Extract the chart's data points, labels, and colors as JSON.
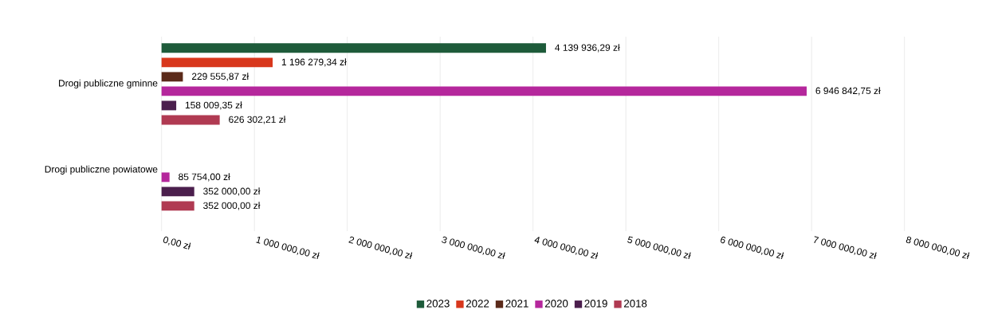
{
  "chart_data": {
    "type": "bar",
    "orientation": "horizontal",
    "categories": [
      "Drogi publiczne gminne",
      "Drogi publiczne powiatowe"
    ],
    "series": [
      {
        "name": "2023",
        "color": "#1e5b3a",
        "values": [
          4139936.29,
          null
        ],
        "value_labels": [
          "4 139 936,29 zł",
          null
        ]
      },
      {
        "name": "2022",
        "color": "#d8371c",
        "values": [
          1196279.34,
          null
        ],
        "value_labels": [
          "1 196 279,34 zł",
          null
        ]
      },
      {
        "name": "2021",
        "color": "#5b2a1a",
        "values": [
          229555.87,
          null
        ],
        "value_labels": [
          "229 555,87 zł",
          null
        ]
      },
      {
        "name": "2020",
        "color": "#b5279c",
        "values": [
          6946842.75,
          85754.0
        ],
        "value_labels": [
          "6 946 842,75 zł",
          "85 754,00 zł"
        ]
      },
      {
        "name": "2019",
        "color": "#4b1f4d",
        "values": [
          158009.35,
          352000.0
        ],
        "value_labels": [
          "158 009,35 zł",
          "352 000,00 zł"
        ]
      },
      {
        "name": "2018",
        "color": "#b03a52",
        "values": [
          626302.21,
          352000.0
        ],
        "value_labels": [
          "626 302,21 zł",
          "352 000,00 zł"
        ]
      }
    ],
    "xlim": [
      0,
      8000000
    ],
    "xticks": [
      {
        "value": 0,
        "label": "0,00 zł"
      },
      {
        "value": 1000000,
        "label": "1 000 000,00 zł"
      },
      {
        "value": 2000000,
        "label": "2 000 000,00 zł"
      },
      {
        "value": 3000000,
        "label": "3 000 000,00 zł"
      },
      {
        "value": 4000000,
        "label": "4 000 000,00 zł"
      },
      {
        "value": 5000000,
        "label": "5 000 000,00 zł"
      },
      {
        "value": 6000000,
        "label": "6 000 000,00 zł"
      },
      {
        "value": 7000000,
        "label": "7 000 000,00 zł"
      },
      {
        "value": 8000000,
        "label": "8 000 000,00 zł"
      }
    ],
    "grid": "x",
    "legend": "bottom"
  }
}
